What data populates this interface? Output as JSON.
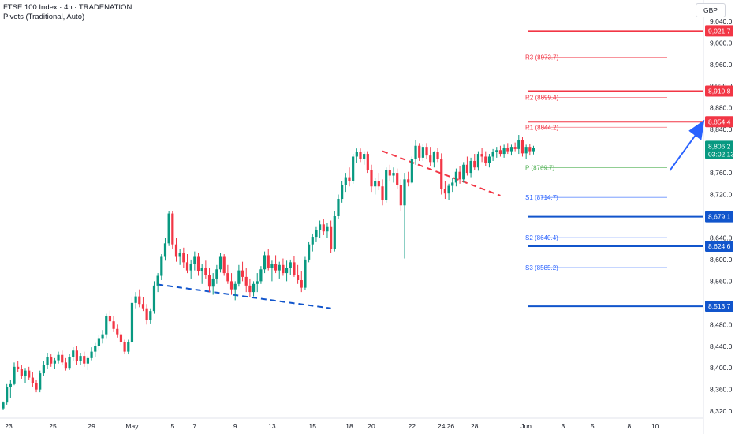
{
  "legend": {
    "symbol": "FTSE 100 Index · 4h · TRADENATION",
    "indicator": "Pivots (Traditional, Auto)"
  },
  "currency_button": "GBP",
  "colors": {
    "up": "#089981",
    "down": "#f23645",
    "resistance": "#f23645",
    "support": "#1155cc",
    "pivot_r_text": "#f23645",
    "pivot_s_text": "#2962ff",
    "pivot_p_text": "#4caf50",
    "arrow": "#2962ff",
    "current_tag": "#089981"
  },
  "chart_data": {
    "type": "candlestick",
    "y_axis": {
      "min": 8310,
      "max": 9050,
      "ticks": [
        "9,040.0",
        "9,000.0",
        "8,960.0",
        "8,920.0",
        "8,880.0",
        "8,840.0",
        "8,800.0",
        "8,760.0",
        "8,720.0",
        "8,680.0",
        "8,640.0",
        "8,600.0",
        "8,560.0",
        "8,520.0",
        "8,480.0",
        "8,440.0",
        "8,400.0",
        "8,360.0",
        "8,320.0"
      ]
    },
    "x_axis": {
      "labels": [
        "23",
        "25",
        "29",
        "May",
        "5",
        "7",
        "9",
        "13",
        "15",
        "18",
        "20",
        "22",
        "24",
        "26",
        "28",
        "Jun",
        "3",
        "5",
        "8",
        "10"
      ],
      "label_index": [
        1.5,
        13.5,
        24,
        35,
        46,
        52,
        63,
        73,
        84,
        94,
        100,
        111,
        119,
        121.5,
        128,
        142,
        152,
        160,
        170,
        177
      ]
    },
    "current_price": {
      "price": "8,806.2",
      "countdown": "03:02:13",
      "value": 8806.2
    },
    "horizontal_levels": [
      {
        "price": "9,021.7",
        "value": 9021.7,
        "color": "resistance"
      },
      {
        "price": "8,910.8",
        "value": 8910.8,
        "color": "resistance"
      },
      {
        "price": "8,854.4",
        "value": 8854.4,
        "color": "resistance"
      },
      {
        "price": "8,679.1",
        "value": 8679.1,
        "color": "support"
      },
      {
        "price": "8,624.6",
        "value": 8624.6,
        "color": "support"
      },
      {
        "price": "8,513.7",
        "value": 8513.7,
        "color": "support"
      }
    ],
    "pivots": [
      {
        "label": "R3 (8973.7)",
        "value": 8973.7,
        "kind": "r"
      },
      {
        "label": "R2 (8899.4)",
        "value": 8899.4,
        "kind": "r"
      },
      {
        "label": "R1 (8844.2)",
        "value": 8844.2,
        "kind": "r"
      },
      {
        "label": "P (8769.7)",
        "value": 8769.7,
        "kind": "p"
      },
      {
        "label": "S1 (8714.7)",
        "value": 8714.7,
        "kind": "s"
      },
      {
        "label": "S2 (8640.4)",
        "value": 8640.4,
        "kind": "s"
      },
      {
        "label": "S3 (8585.2)",
        "value": 8585.2,
        "kind": "s"
      }
    ],
    "trendlines": [
      {
        "name": "support-trend",
        "from": [
          42,
          8554
        ],
        "to": [
          89,
          8510
        ],
        "color": "support"
      },
      {
        "name": "resistance-trend",
        "from": [
          103,
          8800
        ],
        "to": [
          135,
          8718
        ],
        "color": "resistance"
      }
    ],
    "forecast_arrow": {
      "from": [
        169,
        8764
      ],
      "to": [
        178,
        8858
      ]
    },
    "candles": [
      [
        8325,
        8338,
        8322,
        8336
      ],
      [
        8336,
        8370,
        8332,
        8364
      ],
      [
        8364,
        8378,
        8345,
        8370
      ],
      [
        8370,
        8410,
        8368,
        8402
      ],
      [
        8402,
        8412,
        8392,
        8398
      ],
      [
        8398,
        8405,
        8380,
        8385
      ],
      [
        8385,
        8400,
        8372,
        8395
      ],
      [
        8395,
        8402,
        8378,
        8382
      ],
      [
        8382,
        8392,
        8365,
        8372
      ],
      [
        8372,
        8378,
        8355,
        8360
      ],
      [
        8360,
        8395,
        8355,
        8390
      ],
      [
        8390,
        8412,
        8385,
        8405
      ],
      [
        8405,
        8428,
        8398,
        8420
      ],
      [
        8420,
        8425,
        8402,
        8408
      ],
      [
        8408,
        8418,
        8398,
        8414
      ],
      [
        8414,
        8430,
        8408,
        8424
      ],
      [
        8424,
        8432,
        8405,
        8410
      ],
      [
        8410,
        8418,
        8395,
        8400
      ],
      [
        8400,
        8426,
        8396,
        8420
      ],
      [
        8420,
        8438,
        8412,
        8432
      ],
      [
        8432,
        8440,
        8405,
        8412
      ],
      [
        8412,
        8428,
        8405,
        8422
      ],
      [
        8422,
        8430,
        8402,
        8408
      ],
      [
        8408,
        8422,
        8396,
        8418
      ],
      [
        8418,
        8438,
        8414,
        8430
      ],
      [
        8430,
        8446,
        8420,
        8440
      ],
      [
        8440,
        8460,
        8432,
        8455
      ],
      [
        8455,
        8470,
        8445,
        8462
      ],
      [
        8462,
        8500,
        8455,
        8495
      ],
      [
        8495,
        8506,
        8482,
        8486
      ],
      [
        8486,
        8495,
        8466,
        8472
      ],
      [
        8472,
        8480,
        8456,
        8462
      ],
      [
        8462,
        8466,
        8442,
        8448
      ],
      [
        8448,
        8452,
        8425,
        8430
      ],
      [
        8430,
        8452,
        8425,
        8448
      ],
      [
        8448,
        8530,
        8445,
        8520
      ],
      [
        8520,
        8540,
        8510,
        8532
      ],
      [
        8532,
        8545,
        8512,
        8518
      ],
      [
        8518,
        8530,
        8505,
        8510
      ],
      [
        8510,
        8518,
        8480,
        8488
      ],
      [
        8488,
        8510,
        8482,
        8505
      ],
      [
        8505,
        8560,
        8500,
        8552
      ],
      [
        8552,
        8575,
        8540,
        8570
      ],
      [
        8570,
        8610,
        8562,
        8605
      ],
      [
        8605,
        8640,
        8598,
        8630
      ],
      [
        8630,
        8690,
        8625,
        8685
      ],
      [
        8685,
        8690,
        8620,
        8628
      ],
      [
        8628,
        8640,
        8596,
        8605
      ],
      [
        8605,
        8620,
        8590,
        8612
      ],
      [
        8612,
        8622,
        8585,
        8595
      ],
      [
        8595,
        8610,
        8575,
        8580
      ],
      [
        8580,
        8600,
        8565,
        8592
      ],
      [
        8592,
        8615,
        8580,
        8605
      ],
      [
        8605,
        8612,
        8570,
        8578
      ],
      [
        8578,
        8592,
        8555,
        8585
      ],
      [
        8585,
        8598,
        8565,
        8572
      ],
      [
        8572,
        8585,
        8540,
        8550
      ],
      [
        8550,
        8575,
        8535,
        8565
      ],
      [
        8565,
        8590,
        8555,
        8582
      ],
      [
        8582,
        8612,
        8576,
        8605
      ],
      [
        8605,
        8610,
        8570,
        8575
      ],
      [
        8575,
        8590,
        8555,
        8560
      ],
      [
        8560,
        8575,
        8535,
        8545
      ],
      [
        8545,
        8560,
        8525,
        8555
      ],
      [
        8555,
        8590,
        8550,
        8580
      ],
      [
        8580,
        8596,
        8560,
        8568
      ],
      [
        8568,
        8585,
        8540,
        8552
      ],
      [
        8552,
        8565,
        8530,
        8540
      ],
      [
        8540,
        8560,
        8532,
        8555
      ],
      [
        8555,
        8575,
        8540,
        8560
      ],
      [
        8560,
        8588,
        8555,
        8582
      ],
      [
        8582,
        8615,
        8575,
        8608
      ],
      [
        8608,
        8620,
        8580,
        8585
      ],
      [
        8585,
        8598,
        8560,
        8592
      ],
      [
        8592,
        8608,
        8575,
        8580
      ],
      [
        8580,
        8596,
        8565,
        8590
      ],
      [
        8590,
        8602,
        8570,
        8575
      ],
      [
        8575,
        8598,
        8560,
        8585
      ],
      [
        8585,
        8600,
        8572,
        8595
      ],
      [
        8595,
        8606,
        8568,
        8572
      ],
      [
        8572,
        8590,
        8555,
        8562
      ],
      [
        8562,
        8578,
        8540,
        8548
      ],
      [
        8548,
        8605,
        8544,
        8600
      ],
      [
        8600,
        8632,
        8595,
        8628
      ],
      [
        8628,
        8648,
        8615,
        8642
      ],
      [
        8642,
        8660,
        8632,
        8655
      ],
      [
        8655,
        8672,
        8640,
        8665
      ],
      [
        8665,
        8675,
        8645,
        8652
      ],
      [
        8652,
        8668,
        8640,
        8660
      ],
      [
        8660,
        8672,
        8612,
        8620
      ],
      [
        8620,
        8690,
        8615,
        8680
      ],
      [
        8680,
        8720,
        8675,
        8712
      ],
      [
        8712,
        8745,
        8705,
        8738
      ],
      [
        8738,
        8760,
        8725,
        8752
      ],
      [
        8752,
        8770,
        8735,
        8745
      ],
      [
        8745,
        8795,
        8740,
        8790
      ],
      [
        8790,
        8805,
        8778,
        8798
      ],
      [
        8798,
        8805,
        8780,
        8785
      ],
      [
        8785,
        8800,
        8775,
        8795
      ],
      [
        8795,
        8800,
        8760,
        8765
      ],
      [
        8765,
        8775,
        8725,
        8735
      ],
      [
        8735,
        8750,
        8720,
        8745
      ],
      [
        8745,
        8760,
        8728,
        8735
      ],
      [
        8735,
        8748,
        8700,
        8710
      ],
      [
        8710,
        8770,
        8705,
        8765
      ],
      [
        8765,
        8775,
        8745,
        8755
      ],
      [
        8755,
        8770,
        8742,
        8760
      ],
      [
        8760,
        8768,
        8730,
        8738
      ],
      [
        8738,
        8748,
        8690,
        8700
      ],
      [
        8700,
        8760,
        8602,
        8748
      ],
      [
        8748,
        8762,
        8735,
        8742
      ],
      [
        8742,
        8790,
        8740,
        8785
      ],
      [
        8785,
        8820,
        8775,
        8810
      ],
      [
        8810,
        8815,
        8782,
        8788
      ],
      [
        8788,
        8814,
        8782,
        8808
      ],
      [
        8808,
        8815,
        8785,
        8792
      ],
      [
        8792,
        8808,
        8772,
        8780
      ],
      [
        8780,
        8800,
        8770,
        8798
      ],
      [
        8798,
        8806,
        8780,
        8786
      ],
      [
        8786,
        8796,
        8720,
        8730
      ],
      [
        8730,
        8745,
        8712,
        8722
      ],
      [
        8722,
        8740,
        8710,
        8736
      ],
      [
        8736,
        8750,
        8725,
        8742
      ],
      [
        8742,
        8768,
        8735,
        8762
      ],
      [
        8762,
        8772,
        8740,
        8748
      ],
      [
        8748,
        8780,
        8742,
        8775
      ],
      [
        8775,
        8790,
        8755,
        8760
      ],
      [
        8760,
        8788,
        8752,
        8782
      ],
      [
        8782,
        8795,
        8765,
        8770
      ],
      [
        8770,
        8800,
        8764,
        8795
      ],
      [
        8795,
        8806,
        8780,
        8790
      ],
      [
        8790,
        8800,
        8772,
        8778
      ],
      [
        8778,
        8795,
        8770,
        8790
      ],
      [
        8790,
        8804,
        8782,
        8798
      ],
      [
        8798,
        8808,
        8788,
        8802
      ],
      [
        8802,
        8810,
        8790,
        8795
      ],
      [
        8795,
        8812,
        8788,
        8806
      ],
      [
        8806,
        8815,
        8795,
        8800
      ],
      [
        8800,
        8812,
        8792,
        8808
      ],
      [
        8808,
        8816,
        8800,
        8804
      ],
      [
        8804,
        8830,
        8795,
        8820
      ],
      [
        8820,
        8826,
        8790,
        8796
      ],
      [
        8796,
        8812,
        8785,
        8808
      ],
      [
        8808,
        8814,
        8792,
        8800
      ],
      [
        8800,
        8810,
        8794,
        8806
      ]
    ]
  }
}
